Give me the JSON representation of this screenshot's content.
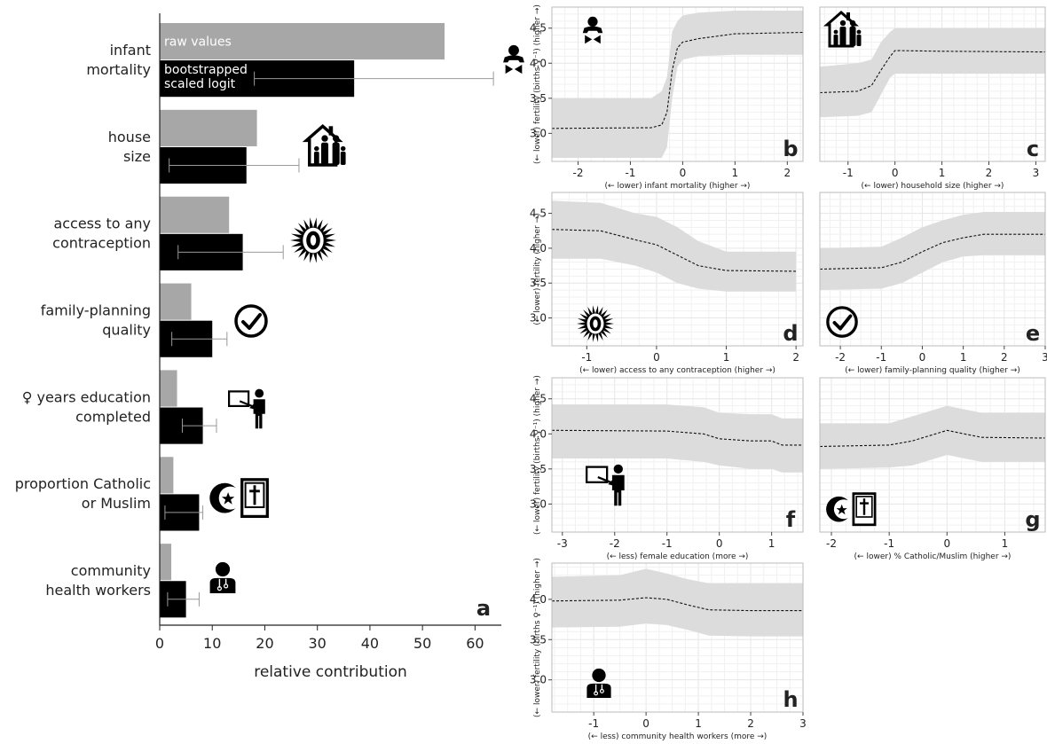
{
  "chart_data": [
    {
      "panel": "a",
      "type": "bar",
      "panel_letter": "a",
      "categories": [
        [
          "infant",
          "mortality"
        ],
        [
          "house",
          "size"
        ],
        [
          "access to any",
          "contraception"
        ],
        [
          "family-planning",
          "quality"
        ],
        [
          "♀ years education",
          "completed"
        ],
        [
          "proportion Catholic",
          "or Muslim"
        ],
        [
          "community",
          "health workers"
        ]
      ],
      "icons": [
        "baby-icon",
        "household-icon",
        "contraception-icon",
        "checkmark-icon",
        "teacher-icon",
        "religion-icon",
        "health-worker-icon"
      ],
      "series": [
        {
          "name": "raw values",
          "color": "#a7a7a7",
          "values": [
            54.2,
            18.5,
            13.2,
            6.0,
            3.3,
            2.6,
            2.2
          ]
        },
        {
          "name": "bootstrapped scaled logit",
          "color": "#000000",
          "values": [
            37.0,
            16.5,
            15.8,
            10.0,
            8.2,
            7.5,
            5.0
          ],
          "error_low": [
            18.0,
            1.8,
            3.5,
            2.3,
            4.3,
            1.0,
            1.5
          ],
          "error_high": [
            63.5,
            26.5,
            23.5,
            12.8,
            10.8,
            8.2,
            7.5
          ]
        }
      ],
      "legend_inside_bars": [
        [
          "raw values"
        ],
        [
          "bootstrapped",
          "scaled logit"
        ]
      ],
      "xlabel": "relative contribution",
      "xlim": [
        0,
        65
      ],
      "xticks": [
        0,
        10,
        20,
        30,
        40,
        50,
        60
      ]
    },
    {
      "panel": "b",
      "type": "area",
      "panel_letter": "b",
      "xlabel": "(← lower) infant mortality (higher →)",
      "ylabel": "(← lower) fertility (births ♀⁻¹) (higher →)",
      "xlim": [
        -2.5,
        2.3
      ],
      "xticks": [
        -2,
        -1,
        0,
        1,
        2
      ],
      "ylim": [
        2.6,
        4.8
      ],
      "yticks": [
        3.0,
        3.5,
        4.0,
        4.5
      ],
      "show_yticklabels": true,
      "x": [
        -2.5,
        -0.6,
        -0.4,
        -0.3,
        -0.2,
        -0.1,
        0,
        0.3,
        1.0,
        2.3
      ],
      "y": [
        3.07,
        3.08,
        3.12,
        3.3,
        3.9,
        4.22,
        4.3,
        4.35,
        4.42,
        4.44
      ],
      "lower": [
        2.65,
        2.65,
        2.65,
        2.8,
        3.5,
        3.95,
        4.05,
        4.1,
        4.12,
        4.12
      ],
      "upper": [
        3.5,
        3.5,
        3.6,
        3.8,
        4.45,
        4.6,
        4.68,
        4.72,
        4.75,
        4.75
      ],
      "icon": "baby-icon"
    },
    {
      "panel": "c",
      "type": "area",
      "panel_letter": "c",
      "xlabel": "(← lower) household size (higher →)",
      "ylabel": "",
      "xlim": [
        -1.6,
        3.2
      ],
      "xticks": [
        -1,
        0,
        1,
        2,
        3
      ],
      "ylim": [
        2.6,
        4.8
      ],
      "yticks": [
        3.0,
        3.5,
        4.0,
        4.5
      ],
      "show_yticklabels": false,
      "x": [
        -1.6,
        -0.8,
        -0.5,
        -0.3,
        -0.1,
        0,
        1.0,
        3.2
      ],
      "y": [
        3.58,
        3.6,
        3.68,
        3.9,
        4.1,
        4.18,
        4.17,
        4.16
      ],
      "lower": [
        3.23,
        3.25,
        3.3,
        3.55,
        3.8,
        3.85,
        3.85,
        3.85
      ],
      "upper": [
        3.95,
        4.0,
        4.05,
        4.3,
        4.45,
        4.5,
        4.5,
        4.5
      ],
      "icon": "household-icon"
    },
    {
      "panel": "d",
      "type": "area",
      "panel_letter": "d",
      "xlabel": "(← lower) access to any contraception (higher →)",
      "ylabel": "(← lower) fertility (higher →)",
      "xlim": [
        -1.5,
        2.1
      ],
      "xticks": [
        -1,
        0,
        1,
        2
      ],
      "ylim": [
        2.6,
        4.8
      ],
      "yticks": [
        3.0,
        3.5,
        4.0,
        4.5
      ],
      "show_yticklabels": true,
      "x": [
        -1.5,
        -0.8,
        -0.3,
        0,
        0.3,
        0.6,
        1.0,
        2.0
      ],
      "y": [
        4.27,
        4.25,
        4.12,
        4.05,
        3.9,
        3.75,
        3.68,
        3.67
      ],
      "lower": [
        3.85,
        3.85,
        3.75,
        3.65,
        3.5,
        3.42,
        3.38,
        3.38
      ],
      "upper": [
        4.68,
        4.65,
        4.5,
        4.45,
        4.3,
        4.1,
        3.95,
        3.95
      ],
      "icon": "contraception-icon"
    },
    {
      "panel": "e",
      "type": "area",
      "panel_letter": "e",
      "xlabel": "(← lower) family-planning quality (higher →)",
      "ylabel": "",
      "xlim": [
        -2.5,
        3.0
      ],
      "xticks": [
        -2,
        -1,
        0,
        1,
        2,
        3
      ],
      "ylim": [
        2.6,
        4.8
      ],
      "yticks": [
        3.0,
        3.5,
        4.0,
        4.5
      ],
      "show_yticklabels": false,
      "x": [
        -2.5,
        -1.0,
        -0.5,
        0,
        0.5,
        1.0,
        1.5,
        3.0
      ],
      "y": [
        3.7,
        3.72,
        3.8,
        3.95,
        4.08,
        4.15,
        4.2,
        4.2
      ],
      "lower": [
        3.4,
        3.42,
        3.5,
        3.65,
        3.8,
        3.88,
        3.9,
        3.9
      ],
      "upper": [
        4.0,
        4.02,
        4.15,
        4.3,
        4.4,
        4.48,
        4.52,
        4.52
      ],
      "icon": "checkmark-icon"
    },
    {
      "panel": "f",
      "type": "area",
      "panel_letter": "f",
      "xlabel": "(← less) female education (more →)",
      "ylabel": "(← lower) fertility (births ♀⁻¹) (higher →)",
      "xlim": [
        -3.2,
        1.6
      ],
      "xticks": [
        -3,
        -2,
        -1,
        0,
        1
      ],
      "ylim": [
        2.6,
        4.8
      ],
      "yticks": [
        3.0,
        3.5,
        4.0,
        4.5
      ],
      "show_yticklabels": true,
      "x": [
        -3.2,
        -1.0,
        -0.3,
        0,
        0.6,
        1.0,
        1.2,
        1.6
      ],
      "y": [
        4.05,
        4.04,
        4.0,
        3.93,
        3.9,
        3.9,
        3.84,
        3.84
      ],
      "lower": [
        3.65,
        3.65,
        3.6,
        3.55,
        3.5,
        3.5,
        3.45,
        3.45
      ],
      "upper": [
        4.42,
        4.42,
        4.38,
        4.3,
        4.28,
        4.28,
        4.22,
        4.22
      ],
      "icon": "teacher-icon"
    },
    {
      "panel": "g",
      "type": "area",
      "panel_letter": "g",
      "xlabel": "(← lower) % Catholic/Muslim (higher →)",
      "ylabel": "",
      "xlim": [
        -2.2,
        1.7
      ],
      "xticks": [
        -2,
        -1,
        0,
        1
      ],
      "ylim": [
        2.6,
        4.8
      ],
      "yticks": [
        3.0,
        3.5,
        4.0,
        4.5
      ],
      "show_yticklabels": false,
      "x": [
        -2.2,
        -1.0,
        -0.6,
        -0.2,
        0,
        0.3,
        0.6,
        1.7
      ],
      "y": [
        3.82,
        3.84,
        3.9,
        4.0,
        4.05,
        4.0,
        3.95,
        3.94
      ],
      "lower": [
        3.5,
        3.52,
        3.55,
        3.65,
        3.7,
        3.65,
        3.6,
        3.6
      ],
      "upper": [
        4.15,
        4.15,
        4.25,
        4.35,
        4.4,
        4.35,
        4.3,
        4.3
      ],
      "icon": "religion-icon"
    },
    {
      "panel": "h",
      "type": "area",
      "panel_letter": "h",
      "xlabel": "(← less) community health workers (more →)",
      "ylabel": "(← lower) fertility (births ♀⁻¹) (higher →)",
      "xlim": [
        -1.8,
        3.0
      ],
      "xticks": [
        -1,
        0,
        1,
        2,
        3
      ],
      "ylim": [
        2.6,
        4.45
      ],
      "yticks": [
        3.0,
        3.5,
        4.0
      ],
      "show_yticklabels": true,
      "x": [
        -1.8,
        -0.5,
        0,
        0.4,
        0.8,
        1.2,
        2.0,
        3.0
      ],
      "y": [
        3.98,
        3.99,
        4.02,
        4.0,
        3.93,
        3.87,
        3.86,
        3.86
      ],
      "lower": [
        3.65,
        3.66,
        3.7,
        3.68,
        3.62,
        3.55,
        3.54,
        3.54
      ],
      "upper": [
        4.28,
        4.3,
        4.38,
        4.32,
        4.25,
        4.2,
        4.2,
        4.2
      ],
      "icon": "health-worker-icon"
    }
  ]
}
